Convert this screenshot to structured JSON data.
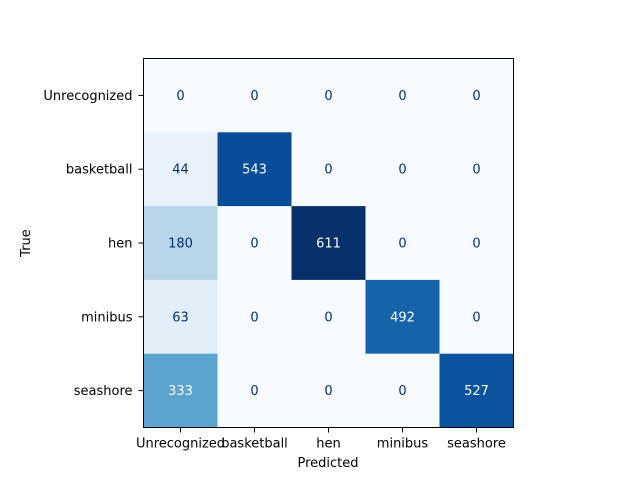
{
  "chart_data": {
    "type": "heatmap",
    "colormap": "Blues",
    "colors": {
      "min": "#f7fbff",
      "max": "#08306b",
      "text_light": "#f7fbff",
      "text_dark": "#08306b"
    },
    "xlabel": "Predicted",
    "ylabel": "True",
    "x_categories": [
      "Unrecognized",
      "basketball",
      "hen",
      "minibus",
      "seashore"
    ],
    "y_categories": [
      "Unrecognized",
      "basketball",
      "hen",
      "minibus",
      "seashore"
    ],
    "matrix": [
      [
        0,
        0,
        0,
        0,
        0
      ],
      [
        44,
        543,
        0,
        0,
        0
      ],
      [
        180,
        0,
        611,
        0,
        0
      ],
      [
        63,
        0,
        0,
        492,
        0
      ],
      [
        333,
        0,
        0,
        0,
        527
      ]
    ],
    "vmin": 0,
    "vmax": 611,
    "grid": false,
    "legend": "none"
  }
}
